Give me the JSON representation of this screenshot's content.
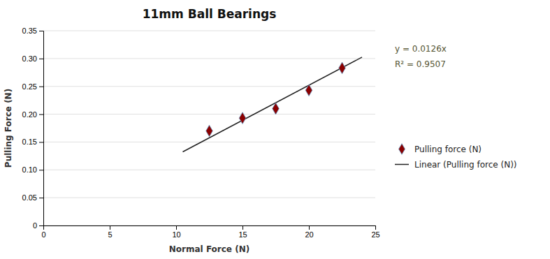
{
  "chart_data": {
    "type": "scatter",
    "title": "11mm Ball Bearings",
    "xlabel": "Normal Force (N)",
    "ylabel": "Pulling Force (N)",
    "xlim": [
      0,
      25
    ],
    "ylim": [
      0,
      0.35
    ],
    "xticks": [
      0,
      5,
      10,
      15,
      20,
      25
    ],
    "yticks": [
      0,
      0.05,
      {
        "value": 0.1,
        "label": "0.10"
      },
      0.15,
      {
        "value": 0.2,
        "label": "0.20"
      },
      0.25,
      {
        "value": 0.3,
        "label": "0.30"
      },
      0.35
    ],
    "grid": true,
    "legend": "right",
    "annotations": [
      "y = 0.0126x",
      "R² = 0.9507"
    ],
    "series": [
      {
        "name": "Pulling force (N)",
        "type": "scatter",
        "marker": "diamond",
        "color": "#8B0000",
        "x": [
          12.5,
          15.0,
          17.5,
          20.0,
          22.5
        ],
        "values": [
          0.17,
          0.193,
          0.21,
          0.243,
          0.283
        ]
      },
      {
        "name": "Linear (Pulling force (N))",
        "type": "line",
        "line_style": "solid",
        "color": "#222222",
        "x": [
          10.5,
          24.0
        ],
        "values": [
          0.1323,
          0.3024
        ]
      }
    ]
  }
}
